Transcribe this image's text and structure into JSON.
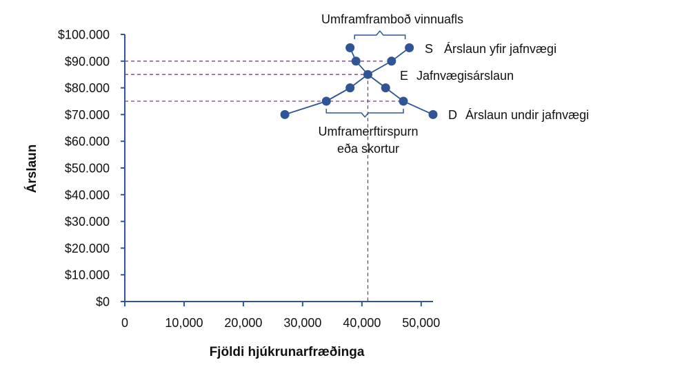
{
  "chart_data": {
    "type": "line",
    "xlabel": "Fjöldi hjúkrunarfræðinga",
    "ylabel": "Árslaun",
    "xlim": [
      0,
      52000
    ],
    "ylim": [
      0,
      100000
    ],
    "x_ticks": [
      "0",
      "10,000",
      "20,000",
      "30,000",
      "40,000",
      "50,000"
    ],
    "x_tick_values": [
      0,
      10000,
      20000,
      30000,
      40000,
      50000
    ],
    "y_ticks": [
      "$0",
      "$10.000",
      "$20.000",
      "$30.000",
      "$40.000",
      "$50.000",
      "$60.000",
      "$70.000",
      "$80.000",
      "$90.000",
      "$100.000"
    ],
    "y_tick_values": [
      0,
      10000,
      20000,
      30000,
      40000,
      50000,
      60000,
      70000,
      80000,
      90000,
      100000
    ],
    "grid": false,
    "colors": {
      "series": "#2f5597",
      "axis": "#2f5597",
      "guide": "#7a3d8c",
      "brace": "#2f5597"
    },
    "series": [
      {
        "name": "S",
        "x": [
          34000,
          38000,
          41000,
          45000,
          48000
        ],
        "y": [
          75000,
          80000,
          85000,
          90000,
          95000
        ]
      },
      {
        "name": "D",
        "x": [
          27000,
          34000,
          38000,
          41000,
          44000,
          47000,
          52000
        ],
        "y": [
          70000,
          75000,
          80000,
          85000,
          80000,
          75000,
          70000
        ]
      },
      {
        "name": "",
        "x": [
          38000,
          39000,
          41000,
          44000
        ],
        "y": [
          95000,
          90000,
          85000,
          80000
        ]
      }
    ],
    "guides": {
      "horizontal": [
        90000,
        85000,
        75000
      ],
      "vertical": [
        41000
      ]
    },
    "braces": [
      {
        "from": 39000,
        "to": 48000,
        "y": 100000
      },
      {
        "from": 34000,
        "to": 47000,
        "y": 72000
      }
    ],
    "annotations": {
      "top_label": "Umframframboð vinnuafls",
      "s_letter": "S",
      "s_text": "Árslaun yfir jafnvægi",
      "e_letter": "E",
      "e_text": "Jafnvægisárslaun",
      "d_letter": "D",
      "d_text": "Árslaun undir jafnvægi",
      "shortage_line1": "Umframerftirspurn",
      "shortage_line2": "eða skortur"
    }
  }
}
